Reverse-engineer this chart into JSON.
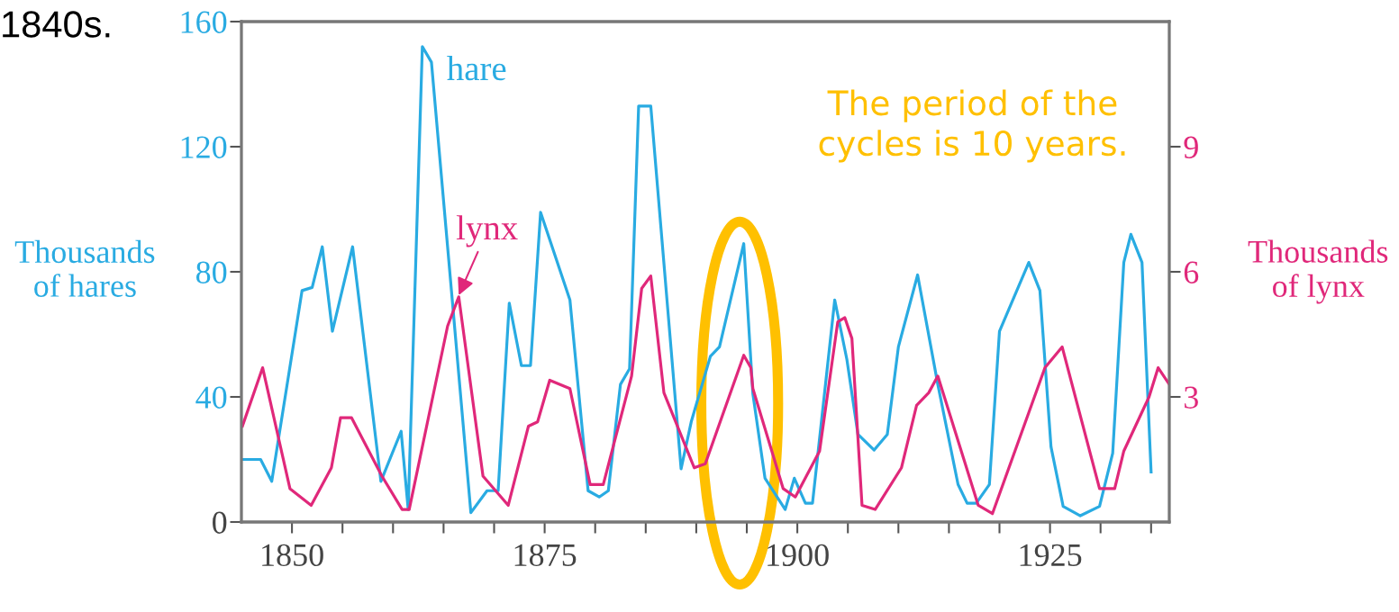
{
  "chart_data": {
    "type": "line",
    "annotations": [
      "1840s.",
      "The period of the cycles is 10 years."
    ],
    "ylabel": "Thousands\nof hares",
    "y2label": "Thousands\nof lynx",
    "xlim": [
      1845,
      1936.8
    ],
    "ylim": [
      0,
      160
    ],
    "y2lim": [
      0,
      12
    ],
    "xticks": [
      {
        "value": 1850,
        "label": "1850"
      },
      {
        "value": 1855,
        "label": null
      },
      {
        "value": 1860,
        "label": null
      },
      {
        "value": 1865,
        "label": null
      },
      {
        "value": 1870,
        "label": null
      },
      {
        "value": 1875,
        "label": "1875"
      },
      {
        "value": 1880,
        "label": null
      },
      {
        "value": 1885,
        "label": null
      },
      {
        "value": 1890,
        "label": null
      },
      {
        "value": 1895,
        "label": null
      },
      {
        "value": 1900,
        "label": "1900"
      },
      {
        "value": 1905,
        "label": null
      },
      {
        "value": 1910,
        "label": null
      },
      {
        "value": 1915,
        "label": null
      },
      {
        "value": 1920,
        "label": null
      },
      {
        "value": 1925,
        "label": "1925"
      },
      {
        "value": 1930,
        "label": null
      },
      {
        "value": 1935,
        "label": null
      }
    ],
    "yticks": [
      0,
      40,
      80,
      120,
      160
    ],
    "y2ticks": [
      3,
      6,
      9
    ],
    "grid": false,
    "legend": false,
    "marker": "none",
    "line_style": "solid",
    "series": [
      {
        "name": "hare",
        "color": "#29abe2",
        "x": [
          1845.1,
          1846.9,
          1848,
          1851,
          1852,
          1853,
          1854,
          1856,
          1858.8,
          1860.8,
          1861.5,
          1862.9,
          1863.8,
          1867.7,
          1869.3,
          1870.4,
          1871.5,
          1872.7,
          1873.6,
          1874.6,
          1877.5,
          1879.3,
          1880.4,
          1881.3,
          1882.5,
          1883.4,
          1884.3,
          1885.5,
          1888.5,
          1889.5,
          1891.4,
          1892.3,
          1894.7,
          1895.6,
          1896.8,
          1898.8,
          1899.7,
          1900.8,
          1901.5,
          1903.7,
          1904.9,
          1906,
          1907.6,
          1908.9,
          1910,
          1911.9,
          1913.9,
          1915.9,
          1916.8,
          1917.7,
          1919,
          1920,
          1922.9,
          1924,
          1925.1,
          1926.3,
          1928,
          1929.9,
          1931.2,
          1932.3,
          1933,
          1934.1,
          1935
        ],
        "values": [
          20,
          20,
          13,
          74,
          75,
          88,
          61,
          88,
          13,
          29,
          4,
          152,
          147,
          3,
          10,
          10,
          70,
          50,
          50,
          99,
          71,
          10,
          8,
          10,
          44,
          49,
          133,
          133,
          17,
          32,
          53,
          56,
          89,
          41,
          14,
          4,
          14,
          6,
          6,
          71,
          52,
          28,
          23,
          28,
          56,
          79,
          44,
          12,
          6,
          6,
          12,
          61,
          83,
          74,
          24,
          5,
          2,
          5,
          22,
          83,
          92,
          83,
          16
        ]
      },
      {
        "name": "lynx",
        "color": "#e0287a",
        "axis": "y2",
        "x": [
          1845.1,
          1847.1,
          1849.8,
          1851.9,
          1853.9,
          1854.8,
          1855.9,
          1858.9,
          1860.9,
          1861.6,
          1865.4,
          1866.5,
          1868.9,
          1871.4,
          1873.4,
          1874.3,
          1875.5,
          1877.5,
          1879.5,
          1880.8,
          1883.6,
          1884.6,
          1885.5,
          1886.8,
          1889.8,
          1890.9,
          1894.7,
          1895.4,
          1895.6,
          1898.6,
          1899.8,
          1902.2,
          1904,
          1904.7,
          1905.4,
          1906.4,
          1907.7,
          1910.3,
          1911.8,
          1913,
          1913.9,
          1917.9,
          1919.3,
          1924.5,
          1926.2,
          1929.9,
          1931.4,
          1932.3,
          1934.8,
          1935.7,
          1936.8
        ],
        "values": [
          2.3,
          3.7,
          0.8,
          0.4,
          1.3,
          2.5,
          2.5,
          1.1,
          0.3,
          0.3,
          4.7,
          5.4,
          1.1,
          0.4,
          2.3,
          2.4,
          3.4,
          3.2,
          0.9,
          0.9,
          3.5,
          5.6,
          5.9,
          3.1,
          1.3,
          1.4,
          4.0,
          3.7,
          3.2,
          0.8,
          0.6,
          1.7,
          4.8,
          4.9,
          4.4,
          0.4,
          0.3,
          1.3,
          2.8,
          3.1,
          3.5,
          0.4,
          0.2,
          3.7,
          4.2,
          0.8,
          0.8,
          1.7,
          3.0,
          3.7,
          3.3
        ]
      }
    ]
  }
}
